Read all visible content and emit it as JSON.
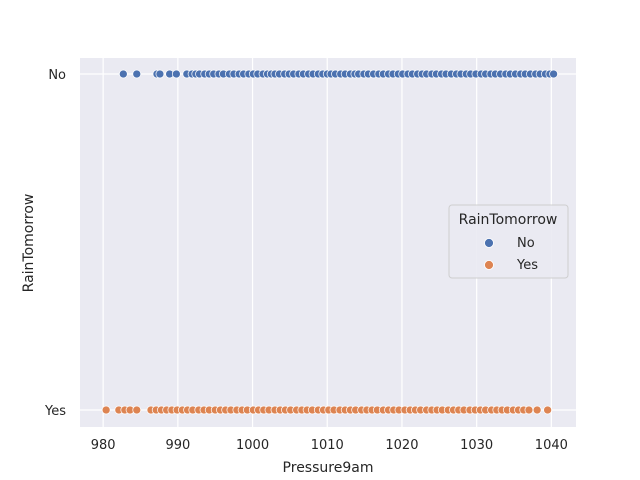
{
  "chart_data": {
    "type": "scatter",
    "title": "",
    "xlabel": "Pressure9am",
    "ylabel": "RainTomorrow",
    "xlim": [
      976.9,
      1043.3
    ],
    "x_ticks": [
      980,
      990,
      1000,
      1010,
      1020,
      1030,
      1040
    ],
    "y_categories": [
      "No",
      "Yes"
    ],
    "grid": true,
    "legend": {
      "title": "RainTomorrow",
      "placement": "center-right"
    },
    "series": [
      {
        "name": "No",
        "color": "#4c72b0",
        "category": "No",
        "x": [
          982.7,
          984.5,
          987.2,
          987.6,
          988.9,
          989.8,
          991.2,
          991.9,
          992.4,
          992.9,
          993.6,
          994.2,
          994.8,
          995.5,
          996.1,
          996.9,
          997.5,
          998.2,
          998.8,
          999.5,
          1000.1,
          1000.7,
          1001.4,
          1002.0,
          1002.5,
          1003.0,
          1003.6,
          1004.3,
          1004.9,
          1005.5,
          1006.2,
          1006.8,
          1007.5,
          1008.1,
          1008.8,
          1009.4,
          1010.0,
          1010.5,
          1011.1,
          1011.8,
          1012.4,
          1013.1,
          1013.7,
          1014.2,
          1014.9,
          1015.5,
          1016.2,
          1016.9,
          1017.5,
          1018.2,
          1018.8,
          1019.5,
          1020.1,
          1020.8,
          1021.4,
          1022.1,
          1022.7,
          1023.3,
          1024.0,
          1024.6,
          1025.3,
          1025.9,
          1026.6,
          1027.3,
          1027.9,
          1028.6,
          1029.2,
          1029.9,
          1030.6,
          1031.2,
          1031.9,
          1032.5,
          1033.2,
          1033.9,
          1034.5,
          1035.2,
          1035.9,
          1036.5,
          1037.2,
          1037.9,
          1038.5,
          1039.2,
          1039.8,
          1040.3
        ]
      },
      {
        "name": "Yes",
        "color": "#dd8452",
        "category": "Yes",
        "x": [
          980.4,
          982.1,
          982.9,
          983.6,
          984.5,
          986.4,
          987.1,
          987.8,
          988.5,
          989.2,
          989.9,
          990.6,
          991.3,
          992.0,
          992.8,
          993.5,
          994.2,
          995.0,
          995.7,
          996.4,
          997.1,
          997.9,
          998.6,
          999.3,
          1000.1,
          1000.8,
          1001.5,
          1002.2,
          1003.0,
          1003.7,
          1004.4,
          1005.1,
          1005.9,
          1006.6,
          1007.3,
          1008.0,
          1008.8,
          1009.5,
          1010.2,
          1010.9,
          1011.7,
          1012.4,
          1013.1,
          1013.8,
          1014.6,
          1015.3,
          1016.0,
          1016.7,
          1017.5,
          1018.2,
          1018.9,
          1019.6,
          1020.4,
          1021.1,
          1021.8,
          1022.5,
          1023.3,
          1024.0,
          1024.7,
          1025.4,
          1026.2,
          1026.9,
          1027.6,
          1028.3,
          1029.1,
          1029.8,
          1030.5,
          1031.2,
          1032.0,
          1032.7,
          1033.4,
          1034.1,
          1034.9,
          1035.6,
          1036.3,
          1037.0,
          1038.1,
          1039.5
        ]
      }
    ]
  }
}
